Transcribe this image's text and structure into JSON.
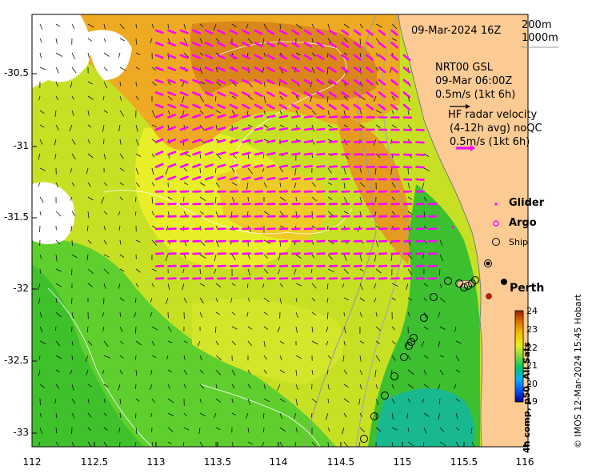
{
  "map": {
    "date": "09-Mar-2024 16Z",
    "contours": [
      "200m",
      "1000m"
    ],
    "nrt_block": {
      "line1": "NRT00 GSL",
      "line2": "09-Mar 06:00Z",
      "line3": "0.5m/s (1kt 6h)"
    },
    "hf_block": {
      "line1": "HF radar velocity",
      "line2": "(4-12h avg) noQC",
      "line3": "0.5m/s (1kt 6h)"
    },
    "legend": {
      "glider": "Glider",
      "argo": "Argo",
      "ship": "Ship"
    },
    "place": "Perth",
    "credit": "© IMOS 12-Mar-2024 15:45 Hobart",
    "y_ticks": [
      "-30.5",
      "-31",
      "-31.5",
      "-32",
      "-32.5",
      "-33"
    ],
    "x_ticks": [
      "112",
      "112.5",
      "113",
      "113.5",
      "114",
      "114.5",
      "115",
      "115.5",
      "116"
    ],
    "colorbar": {
      "ticks": [
        "24",
        "23",
        "22",
        "21",
        "20",
        "19"
      ],
      "label": "4h comp, p50, All Sats",
      "min": 19,
      "max": 24
    },
    "colors": {
      "land": "#fccb94",
      "vector": "#ff00ff",
      "coast": "#7a7a7a"
    }
  }
}
